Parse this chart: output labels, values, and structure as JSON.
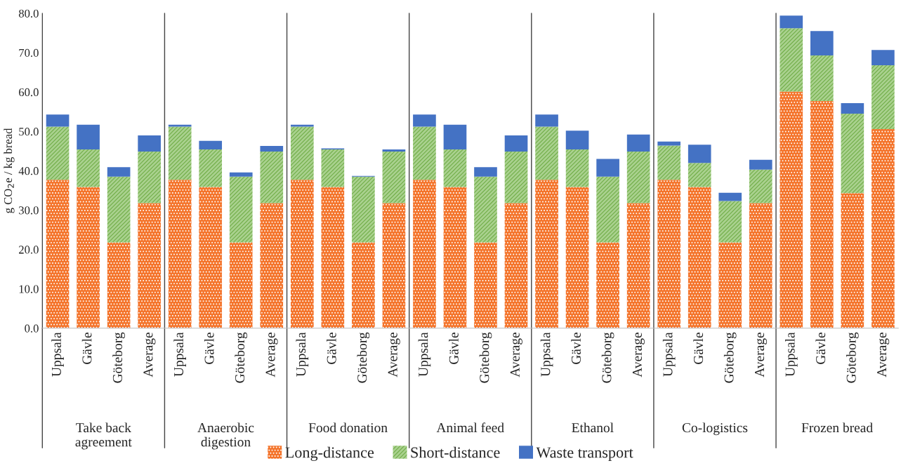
{
  "chart_data": {
    "type": "bar",
    "stacked": true,
    "ylabel": "g CO$_{2}$e / kg bread",
    "categories": [
      "Uppsala",
      "Gävle",
      "Göteborg",
      "Average",
      "Uppsala",
      "Gävle",
      "Göteborg",
      "Average",
      "Uppsala",
      "Gävle",
      "Göteborg",
      "Average",
      "Uppsala",
      "Gävle",
      "Göteborg",
      "Average",
      "Uppsala",
      "Gävle",
      "Göteborg",
      "Average",
      "Uppsala",
      "Gävle",
      "Göteborg",
      "Average",
      "Uppsala",
      "Gävle",
      "Göteborg",
      "Average"
    ],
    "series": [
      {
        "name": "Long-distance",
        "color": "#f4742b",
        "values": [
          37.7,
          35.9,
          21.8,
          31.8,
          37.7,
          35.9,
          21.8,
          31.8,
          37.7,
          35.9,
          21.8,
          31.8,
          37.7,
          35.9,
          21.8,
          31.8,
          37.7,
          35.9,
          21.8,
          31.8,
          37.7,
          35.9,
          21.8,
          31.8,
          60.1,
          57.7,
          34.3,
          50.6
        ]
      },
      {
        "name": "Short-distance",
        "color": "#a9d18e",
        "values": [
          13.5,
          9.5,
          16.7,
          13.1,
          13.5,
          9.5,
          16.7,
          13.1,
          13.5,
          9.5,
          16.7,
          13.1,
          13.5,
          9.5,
          16.7,
          13.1,
          13.5,
          9.5,
          16.7,
          13.1,
          8.7,
          6.1,
          10.5,
          8.5,
          16.1,
          11.6,
          20.2,
          16.2
        ]
      },
      {
        "name": "Waste transport",
        "color": "#4472c4",
        "values": [
          3.1,
          6.3,
          2.4,
          4.1,
          0.5,
          2.2,
          1.1,
          1.4,
          0.5,
          0.3,
          0.2,
          0.5,
          3.1,
          6.3,
          2.4,
          4.1,
          3.1,
          4.8,
          4.5,
          4.3,
          1.0,
          4.6,
          2.1,
          2.5,
          3.2,
          6.2,
          2.7,
          3.9
        ]
      }
    ],
    "ylim": [
      0,
      80
    ],
    "yticks": [
      {
        "value": 0,
        "label": "0.0"
      },
      {
        "value": 10,
        "label": "10.0"
      },
      {
        "value": 20,
        "label": "20.0"
      },
      {
        "value": 30,
        "label": "30.0"
      },
      {
        "value": 40,
        "label": "40.0"
      },
      {
        "value": 50,
        "label": "50.0"
      },
      {
        "value": 60,
        "label": "60.0"
      },
      {
        "value": 70,
        "label": "70.0"
      },
      {
        "value": 80,
        "label": "80.0"
      }
    ],
    "annotations": [
      "Take back\nagreement",
      "Anaerobic\ndigestion",
      "Food donation",
      "Animal feed",
      "Ethanol",
      "Co-logistics",
      "Frozen bread"
    ],
    "legend": "bottom"
  }
}
